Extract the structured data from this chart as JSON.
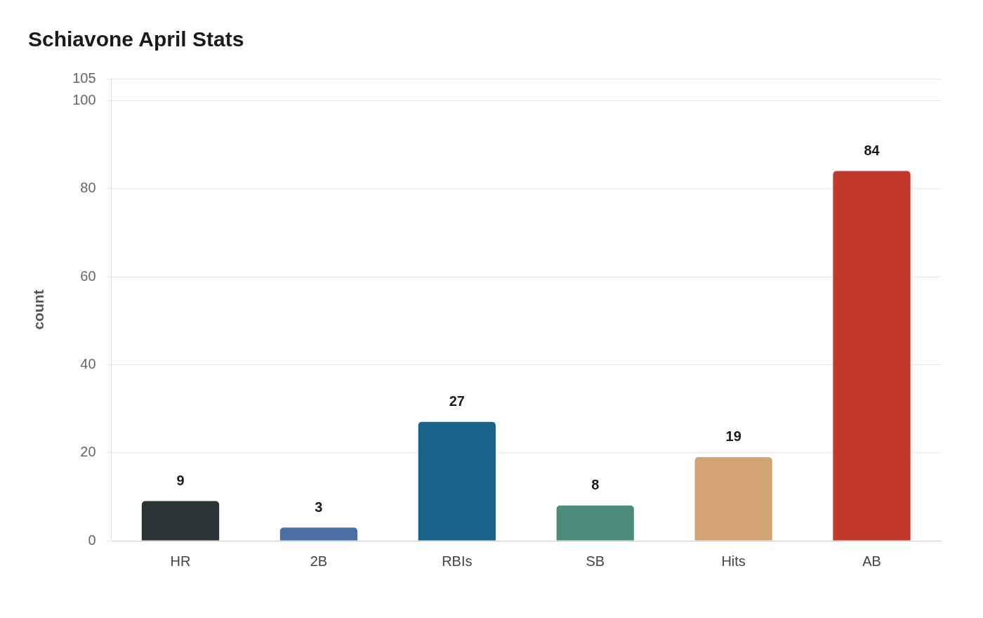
{
  "chart_data": {
    "type": "bar",
    "title": "Schiavone April Stats",
    "ylabel": "count",
    "categories": [
      "HR",
      "2B",
      "RBIs",
      "SB",
      "Hits",
      "AB"
    ],
    "values": [
      9,
      3,
      27,
      8,
      19,
      84
    ],
    "colors": [
      "#2b3336",
      "#4a6fa5",
      "#166289",
      "#4d8c7a",
      "#d3a373",
      "#c0392b"
    ],
    "ylim": [
      0,
      105
    ],
    "yticks": [
      0,
      20,
      40,
      60,
      80,
      100,
      105
    ],
    "grid": "y",
    "legend": false,
    "data_labels": true
  }
}
